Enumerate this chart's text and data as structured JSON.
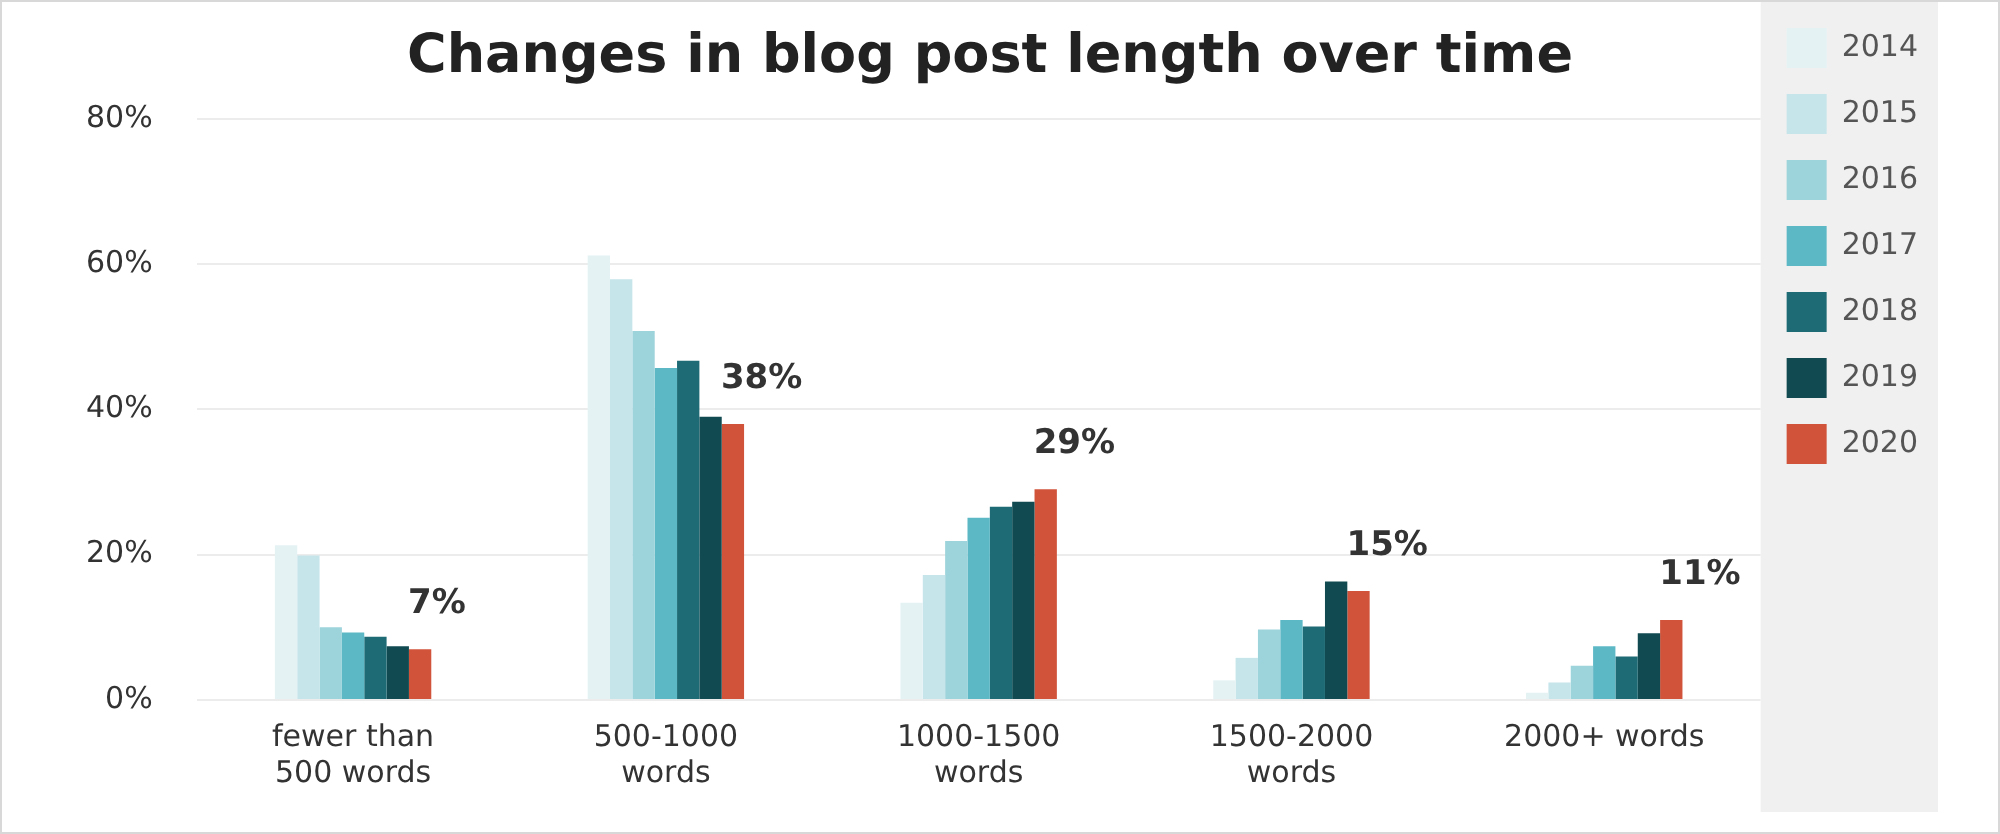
{
  "chart_data": {
    "type": "bar",
    "title": "Changes in blog post length over time",
    "categories": [
      "fewer than 500 words",
      "500-1000 words",
      "1000-1500 words",
      "1500-2000 words",
      "2000+ words"
    ],
    "series": [
      {
        "name": "2014",
        "color": "#e4f2f4",
        "values": [
          21.3,
          61.2,
          13.4,
          2.7,
          1
        ]
      },
      {
        "name": "2015",
        "color": "#c5e5ea",
        "values": [
          19.9,
          57.9,
          17.2,
          5.8,
          2.4
        ]
      },
      {
        "name": "2016",
        "color": "#9dd3db",
        "values": [
          10,
          50.8,
          21.9,
          9.7,
          4.7
        ]
      },
      {
        "name": "2017",
        "color": "#5db8c6",
        "values": [
          9.3,
          45.7,
          25.1,
          11,
          7.4
        ]
      },
      {
        "name": "2018",
        "color": "#1f6b75",
        "values": [
          8.7,
          46.7,
          26.6,
          10.1,
          6
        ]
      },
      {
        "name": "2019",
        "color": "#114a50",
        "values": [
          7.4,
          39,
          27.3,
          16.3,
          9.2
        ]
      },
      {
        "name": "2020",
        "color": "#d0533a",
        "values": [
          7,
          38,
          29,
          15,
          11
        ],
        "value_labels": [
          "7%",
          "38%",
          "29%",
          "15%",
          "11%"
        ]
      }
    ],
    "ylim": [
      0,
      80
    ],
    "yticks": [
      {
        "value": 0,
        "label": "0%"
      },
      {
        "value": 20,
        "label": "20%"
      },
      {
        "value": 40,
        "label": "40%"
      },
      {
        "value": 60,
        "label": "60%"
      },
      {
        "value": 80,
        "label": "80%"
      }
    ],
    "grid": "y",
    "legend": "right"
  }
}
